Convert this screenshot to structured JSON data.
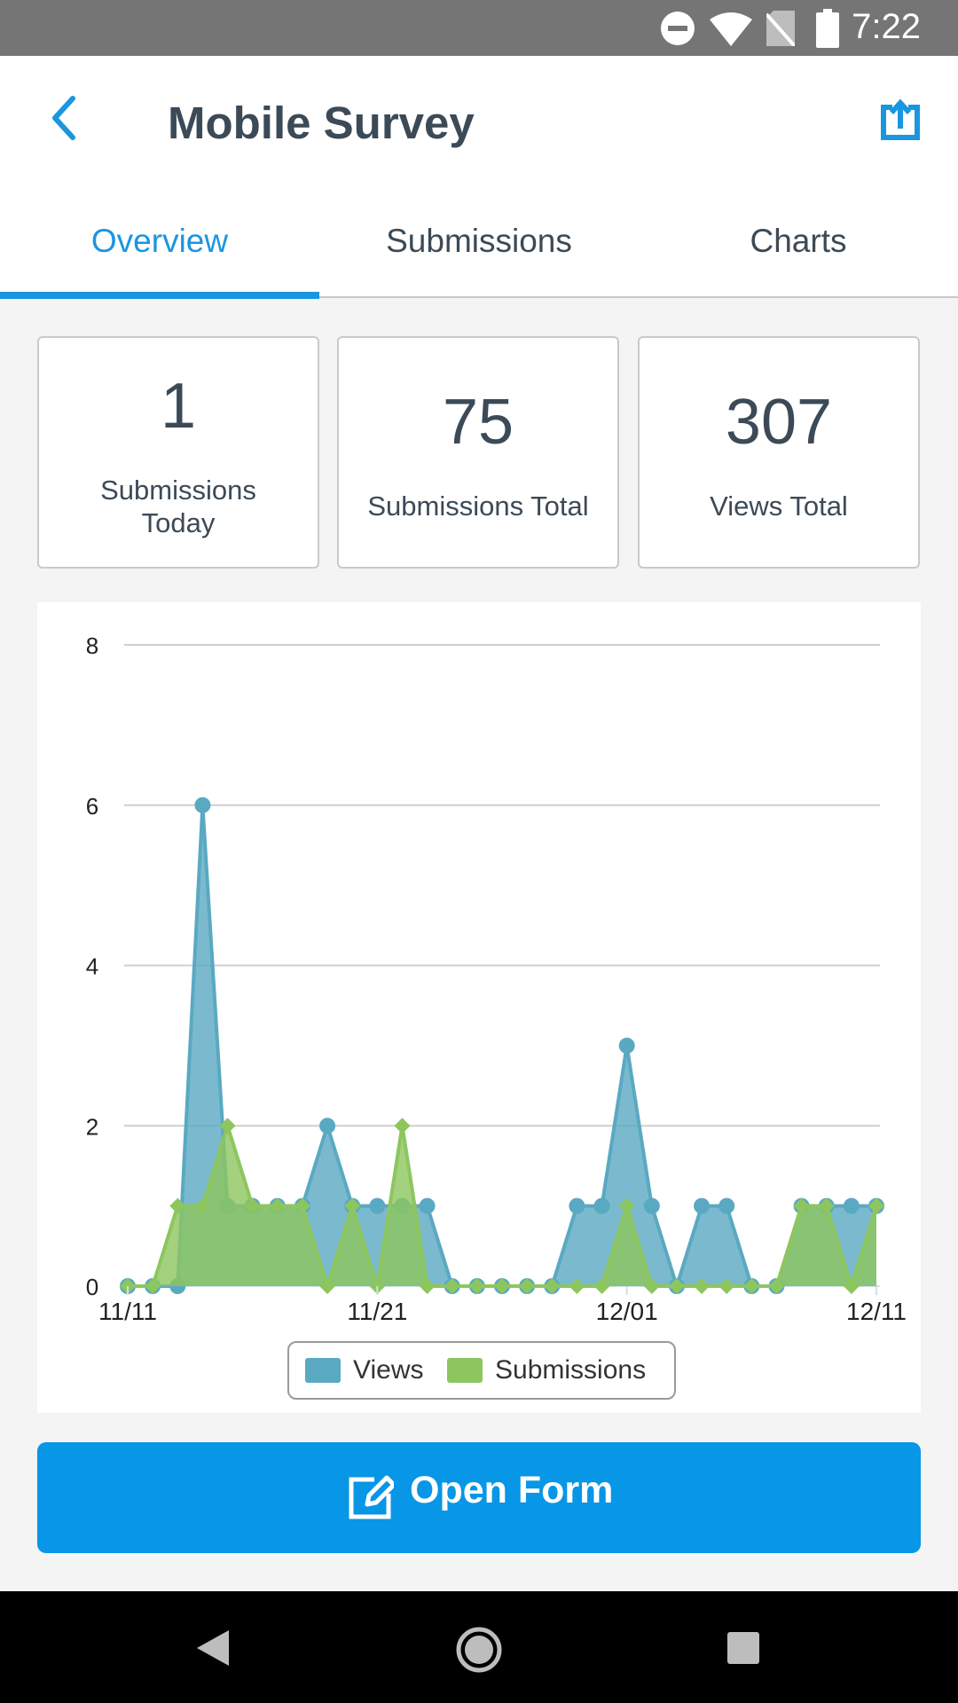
{
  "status_bar": {
    "time": "7:22"
  },
  "header": {
    "title": "Mobile Survey"
  },
  "tabs": [
    {
      "label": "Overview"
    },
    {
      "label": "Submissions"
    },
    {
      "label": "Charts"
    }
  ],
  "stats": [
    {
      "value": "1",
      "label": "Submissions Today"
    },
    {
      "value": "75",
      "label": "Submissions Total"
    },
    {
      "value": "307",
      "label": "Views Total"
    }
  ],
  "chart_data": {
    "type": "area",
    "x": [
      "11/11",
      "11/12",
      "11/13",
      "11/14",
      "11/15",
      "11/16",
      "11/17",
      "11/18",
      "11/19",
      "11/20",
      "11/21",
      "11/22",
      "11/23",
      "11/24",
      "11/25",
      "11/26",
      "11/27",
      "11/28",
      "11/29",
      "11/30",
      "12/01",
      "12/02",
      "12/03",
      "12/04",
      "12/05",
      "12/06",
      "12/07",
      "12/08",
      "12/09",
      "12/10",
      "12/11"
    ],
    "series": [
      {
        "name": "Views",
        "color": "#5aa9c2",
        "values": [
          0,
          0,
          0,
          6,
          1,
          1,
          1,
          1,
          2,
          1,
          1,
          1,
          1,
          0,
          0,
          0,
          0,
          0,
          1,
          1,
          3,
          1,
          0,
          1,
          1,
          0,
          0,
          1,
          1,
          1,
          1
        ]
      },
      {
        "name": "Submissions",
        "color": "#8dc65e",
        "values": [
          0,
          0,
          1,
          1,
          2,
          1,
          1,
          1,
          0,
          1,
          0,
          2,
          0,
          0,
          0,
          0,
          0,
          0,
          0,
          0,
          1,
          0,
          0,
          0,
          0,
          0,
          0,
          1,
          1,
          0,
          1
        ]
      }
    ],
    "xtick_labels": [
      "11/11",
      "11/21",
      "12/01",
      "12/11"
    ],
    "ytick_labels": [
      "0",
      "2",
      "4",
      "6",
      "8"
    ],
    "ylim": [
      0,
      8
    ],
    "grid": true,
    "legend": {
      "position": "bottom-center",
      "items": [
        "Views",
        "Submissions"
      ]
    }
  },
  "action": {
    "open_form_label": "Open Form"
  },
  "colors": {
    "accent": "#1a96e0",
    "button": "#0896e6",
    "text": "#3c4a57"
  }
}
